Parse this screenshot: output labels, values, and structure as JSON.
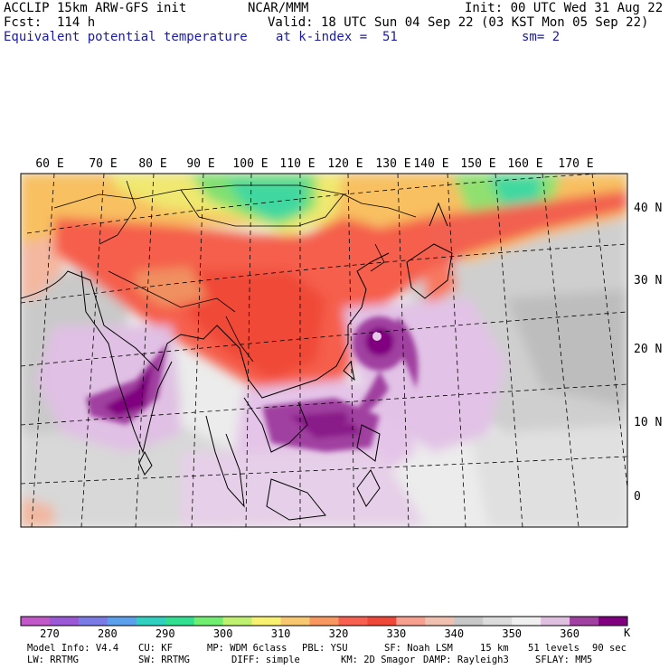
{
  "header": {
    "model_line": "ACCLIP 15km ARW-GFS init",
    "forecast": "Fcst:  114 h",
    "field": "Equivalent potential temperature",
    "center": "NCAR/MMM",
    "valid": "Valid: 18 UTC Sun 04 Sep 22 (03 KST Mon 05 Sep 22)",
    "init": "Init: 00 UTC Wed 31 Aug 22",
    "level": "at k-index =  51",
    "smoothing": "sm= 2"
  },
  "map": {
    "lon_labels": [
      "60 E",
      "70 E",
      "80 E",
      "90 E",
      "100 E",
      "110 E",
      "120 E",
      "130 E",
      "140 E",
      "150 E",
      "160 E",
      "170 E"
    ],
    "lat_labels": [
      "40 N",
      "30 N",
      "20 N",
      "10 N",
      "0"
    ]
  },
  "colorbar": {
    "unit": "K",
    "labels": [
      "270",
      "280",
      "290",
      "300",
      "310",
      "320",
      "330",
      "340",
      "350",
      "360"
    ],
    "colors": [
      "#c157c8",
      "#9b59d8",
      "#7b7be8",
      "#5aa0ec",
      "#2fd0c0",
      "#30e090",
      "#70ee70",
      "#c0f070",
      "#f8f070",
      "#f8c870",
      "#f89860",
      "#f86050",
      "#f04838",
      "#f8a090",
      "#f0c0b0",
      "#c8c8c8",
      "#dcdcdc",
      "#f0f0f0",
      "#e0c0e0",
      "#a040a0",
      "#800080"
    ]
  },
  "footer": {
    "line1": [
      "Model Info: V4.4",
      "CU: KF",
      "MP: WDM 6class",
      "PBL: YSU",
      "SF: Noah LSM",
      "15 km",
      "51 levels",
      "90 sec"
    ],
    "line2": [
      "LW: RRTMG",
      "SW: RRTMG",
      "DIFF: simple",
      "KM: 2D Smagor",
      "DAMP: Rayleigh3",
      "SFLAY: MM5"
    ]
  }
}
